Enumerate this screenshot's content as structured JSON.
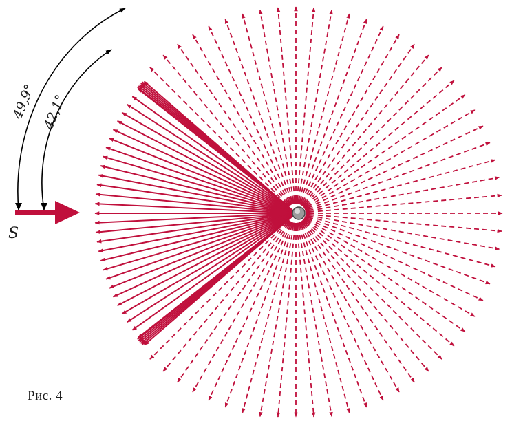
{
  "figure": {
    "caption": "Рис. 4",
    "source_label": "S",
    "angle_outer_label": "49,9°",
    "angle_inner_label": "42,1°",
    "colors": {
      "rays": "#c0103c",
      "arrows": "#000000",
      "center_dot": "#8a8a8a"
    },
    "dashed_ray_count": 72,
    "reflected_ray_count": 31
  }
}
